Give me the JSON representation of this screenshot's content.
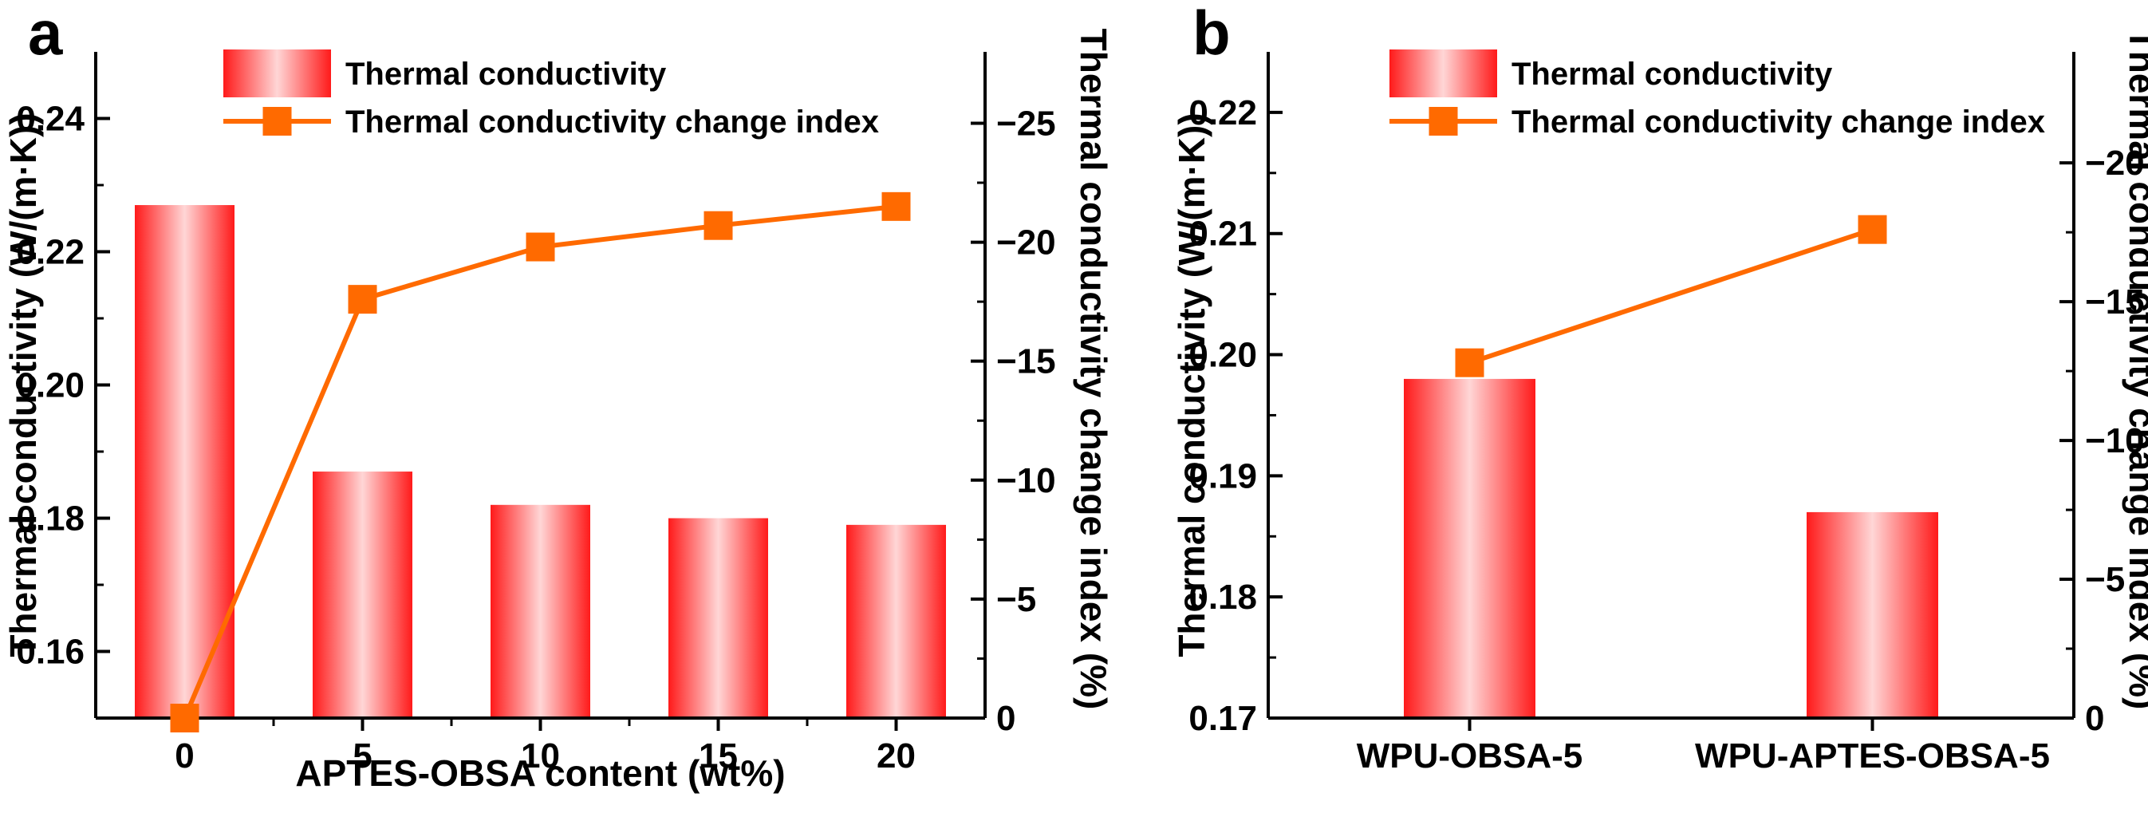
{
  "colors": {
    "bar_edge": "#ff1a1a",
    "bar_center": "#ffd6d6",
    "line": "#ff6a00",
    "marker": "#ff6a00",
    "axis": "#000000"
  },
  "chart_data": [
    {
      "panel": "a",
      "type": "bar",
      "categories": [
        "0",
        "5",
        "10",
        "15",
        "20"
      ],
      "series": [
        {
          "name": "Thermal conductivity",
          "type": "bar",
          "axis": "left",
          "values": [
            0.227,
            0.187,
            0.182,
            0.18,
            0.179
          ]
        },
        {
          "name": "Thermal conductivity change index",
          "type": "line",
          "axis": "right",
          "values": [
            0,
            -17.6,
            -19.8,
            -20.7,
            -21.5
          ]
        }
      ],
      "xlabel": "APTES-OBSA content (wt%)",
      "ylabel": "Thermal conductivity (W/(m·K))",
      "y2label": "Thermal conductivity change index (%)",
      "ylim": [
        0.15,
        0.25
      ],
      "yticks": [
        0.16,
        0.18,
        0.2,
        0.22,
        0.24
      ],
      "ytick_labels": [
        "0.16",
        "0.18",
        "0.20",
        "0.22",
        "0.24"
      ],
      "y2lim": [
        0,
        -28
      ],
      "y2ticks": [
        0,
        -5,
        -10,
        -15,
        -20,
        -25
      ],
      "y2tick_labels": [
        "0",
        "−5",
        "−10",
        "−15",
        "−20",
        "−25"
      ],
      "legend": {
        "position": "top-left",
        "entries": [
          "Thermal conductivity",
          "Thermal conductivity change index"
        ]
      },
      "grid": false
    },
    {
      "panel": "b",
      "type": "bar",
      "categories": [
        "WPU-OBSA-5",
        "WPU-APTES-OBSA-5"
      ],
      "series": [
        {
          "name": "Thermal conductivity",
          "type": "bar",
          "axis": "left",
          "values": [
            0.198,
            0.187
          ]
        },
        {
          "name": "Thermal conductivity change index",
          "type": "line",
          "axis": "right",
          "values": [
            -12.8,
            -17.6
          ]
        }
      ],
      "xlabel": "",
      "ylabel": "Thermal conductivity (W/(m·K))",
      "y2label": "Thermal conductivity change index (%)",
      "ylim": [
        0.17,
        0.225
      ],
      "yticks": [
        0.17,
        0.18,
        0.19,
        0.2,
        0.21,
        0.22
      ],
      "ytick_labels": [
        "0.17",
        "0.18",
        "0.19",
        "0.20",
        "0.21",
        "0.22"
      ],
      "y2lim": [
        0,
        -24
      ],
      "y2ticks": [
        0,
        -5,
        -10,
        -15,
        -20
      ],
      "y2tick_labels": [
        "0",
        "−5",
        "−10",
        "−15",
        "−20"
      ],
      "legend": {
        "position": "top-left",
        "entries": [
          "Thermal conductivity",
          "Thermal conductivity change index"
        ]
      },
      "grid": false
    }
  ]
}
